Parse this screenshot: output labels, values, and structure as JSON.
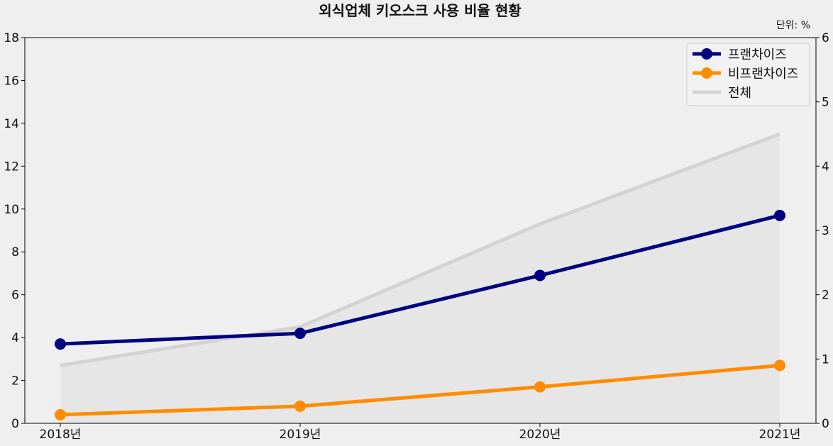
{
  "chart_data": {
    "type": "line",
    "title": "외식업체 키오스크 사용 비율 현황",
    "unit_label": "단위: %",
    "categories": [
      "2018년",
      "2019년",
      "2020년",
      "2021년"
    ],
    "series": [
      {
        "name": "프랜차이즈",
        "axis": "left",
        "values": [
          3.7,
          4.2,
          6.9,
          9.7
        ],
        "color": "#000080",
        "marker": "circle"
      },
      {
        "name": "비프랜차이즈",
        "axis": "left",
        "values": [
          0.4,
          0.8,
          1.7,
          2.7
        ],
        "color": "#ff8c00",
        "marker": "circle"
      },
      {
        "name": "전체",
        "axis": "right",
        "values": [
          0.9,
          1.5,
          3.1,
          4.5
        ],
        "color": "#d3d3d3",
        "fill": "#e6e6e6",
        "marker": "none"
      }
    ],
    "ylim_left": [
      0,
      18
    ],
    "yticks_left": [
      0,
      2,
      4,
      6,
      8,
      10,
      12,
      14,
      16,
      18
    ],
    "ylim_right": [
      0,
      6
    ],
    "yticks_right": [
      0,
      1,
      2,
      3,
      4,
      5,
      6
    ],
    "grid": false,
    "legend_position": "top-right"
  }
}
